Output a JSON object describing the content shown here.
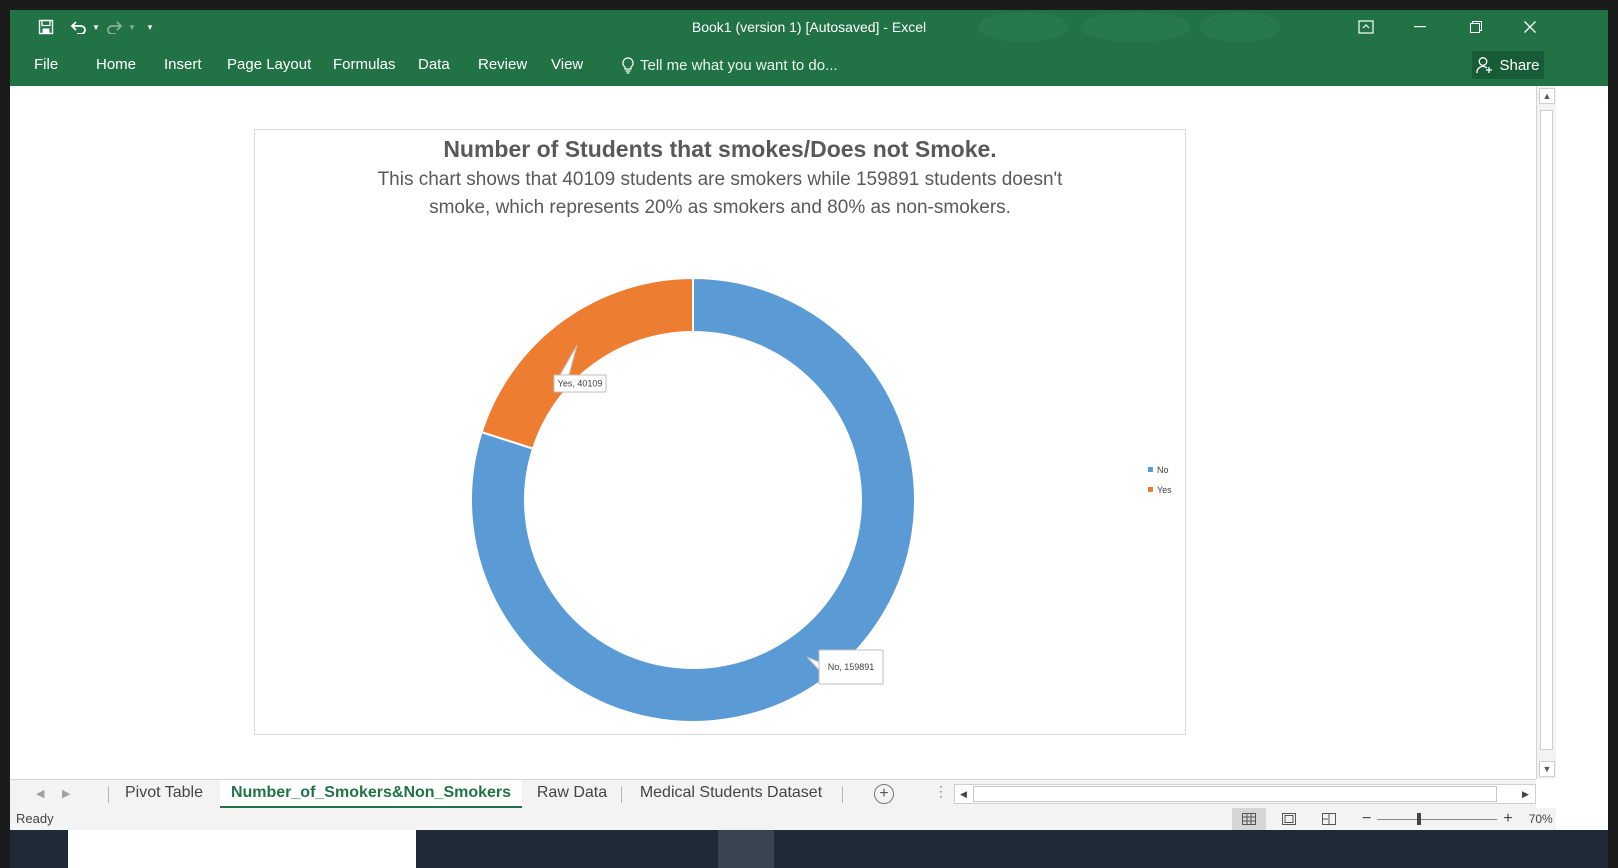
{
  "window": {
    "title": "Book1 (version 1) [Autosaved] - Excel",
    "accent": "#217346"
  },
  "menu": {
    "items": [
      "File",
      "Home",
      "Insert",
      "Page Layout",
      "Formulas",
      "Data",
      "Review",
      "View"
    ],
    "tell_me": "Tell me what you want to do...",
    "share": "Share"
  },
  "chart_data": {
    "type": "pie",
    "title": "Number of Students that smokes/Does not Smoke.",
    "subtitle": "This chart shows that 40109 students are smokers while 159891 students doesn't smoke, which represents 20% as smokers and 80% as non-smokers.",
    "categories": [
      "No",
      "Yes"
    ],
    "values": [
      159891,
      40109
    ],
    "colors": [
      "#5b9bd5",
      "#ed7d31"
    ],
    "data_labels": [
      "No, 159891",
      "Yes, 40109"
    ],
    "legend": [
      "No",
      "Yes"
    ],
    "legend_position": "right",
    "style": "doughnut"
  },
  "sheets": {
    "tabs": [
      "Pivot Table",
      "Number_of_Smokers&Non_Smokers",
      "Raw Data",
      "Medical Students Dataset"
    ],
    "active": "Number_of_Smokers&Non_Smokers"
  },
  "status": {
    "text": "Ready",
    "zoom": "70%"
  }
}
